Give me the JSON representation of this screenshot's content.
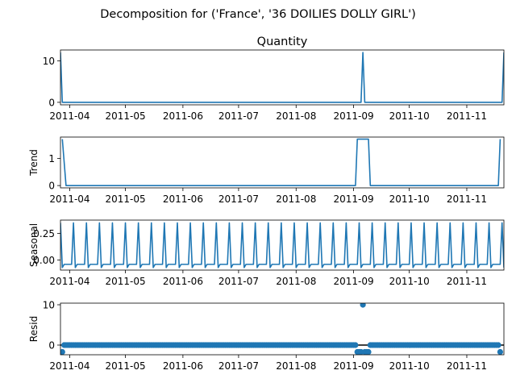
{
  "suptitle": "Decomposition for ('France', '36 DOILIES DOLLY GIRL')",
  "colors": {
    "line": "#1f77b4",
    "marker": "#1f77b4",
    "axis": "#000000",
    "background": "#ffffff"
  },
  "chart_data": [
    {
      "type": "line",
      "key": "observed",
      "title": "Quantity",
      "ylabel": "",
      "ylim": [
        -0.6,
        12.6
      ],
      "yticks": [
        {
          "v": 0,
          "label": "0"
        },
        {
          "v": 10,
          "label": "10"
        }
      ],
      "x_start": "2011-03-27",
      "x_end": "2011-11-21",
      "xticks": [
        {
          "v": "2011-04-01",
          "label": "2011-04"
        },
        {
          "v": "2011-05-01",
          "label": "2011-05"
        },
        {
          "v": "2011-06-01",
          "label": "2011-06"
        },
        {
          "v": "2011-07-01",
          "label": "2011-07"
        },
        {
          "v": "2011-08-01",
          "label": "2011-08"
        },
        {
          "v": "2011-09-01",
          "label": "2011-09"
        },
        {
          "v": "2011-10-01",
          "label": "2011-10"
        },
        {
          "v": "2011-11-01",
          "label": "2011-11"
        }
      ],
      "series": [
        {
          "name": "Quantity",
          "points": [
            [
              "2011-03-27",
              12
            ],
            [
              "2011-03-28",
              0
            ],
            [
              "2011-09-05",
              0
            ],
            [
              "2011-09-06",
              12
            ],
            [
              "2011-09-07",
              0
            ],
            [
              "2011-11-20",
              0
            ],
            [
              "2011-11-21",
              12
            ]
          ]
        }
      ]
    },
    {
      "type": "line",
      "key": "trend",
      "title": "",
      "ylabel": "Trend",
      "ylim": [
        -0.085,
        1.785
      ],
      "yticks": [
        {
          "v": 0,
          "label": "0"
        },
        {
          "v": 1,
          "label": "1"
        }
      ],
      "x_start": "2011-03-27",
      "x_end": "2011-11-21",
      "xticks": [
        {
          "v": "2011-04-01",
          "label": "2011-04"
        },
        {
          "v": "2011-05-01",
          "label": "2011-05"
        },
        {
          "v": "2011-06-01",
          "label": "2011-06"
        },
        {
          "v": "2011-07-01",
          "label": "2011-07"
        },
        {
          "v": "2011-08-01",
          "label": "2011-08"
        },
        {
          "v": "2011-09-01",
          "label": "2011-09"
        },
        {
          "v": "2011-10-01",
          "label": "2011-10"
        },
        {
          "v": "2011-11-01",
          "label": "2011-11"
        }
      ],
      "series": [
        {
          "name": "Trend",
          "points": [
            [
              "2011-03-28",
              1.71
            ],
            [
              "2011-03-30",
              0
            ],
            [
              "2011-09-02",
              0
            ],
            [
              "2011-09-03",
              1.71
            ],
            [
              "2011-09-09",
              1.71
            ],
            [
              "2011-09-10",
              0
            ],
            [
              "2011-11-18",
              0
            ],
            [
              "2011-11-19",
              1.71
            ]
          ]
        }
      ]
    },
    {
      "type": "line",
      "key": "seasonal",
      "title": "",
      "ylabel": "Seasonal",
      "ylim": [
        -0.094,
        0.376
      ],
      "yticks": [
        {
          "v": 0,
          "label": "0.00"
        },
        {
          "v": 0.25,
          "label": "0.25"
        }
      ],
      "x_start": "2011-03-27",
      "x_end": "2011-11-21",
      "xticks": [
        {
          "v": "2011-04-01",
          "label": "2011-04"
        },
        {
          "v": "2011-05-01",
          "label": "2011-05"
        },
        {
          "v": "2011-06-01",
          "label": "2011-06"
        },
        {
          "v": "2011-07-01",
          "label": "2011-07"
        },
        {
          "v": "2011-08-01",
          "label": "2011-08"
        },
        {
          "v": "2011-09-01",
          "label": "2011-09"
        },
        {
          "v": "2011-10-01",
          "label": "2011-10"
        },
        {
          "v": "2011-11-01",
          "label": "2011-11"
        }
      ],
      "seasonal_pattern": {
        "period_days": 7,
        "peak_date": "2011-03-27",
        "values": [
          0.35,
          -0.07,
          -0.04,
          -0.04,
          -0.04,
          -0.04,
          -0.04
        ]
      },
      "series": [
        {
          "name": "Seasonal",
          "points": []
        }
      ]
    },
    {
      "type": "scatter",
      "key": "resid",
      "title": "",
      "ylabel": "Resid",
      "ylim": [
        -2.4,
        10.4
      ],
      "yticks": [
        {
          "v": 0,
          "label": "0"
        },
        {
          "v": 10,
          "label": "10"
        }
      ],
      "x_start": "2011-03-27",
      "x_end": "2011-11-21",
      "xticks": [
        {
          "v": "2011-04-01",
          "label": "2011-04"
        },
        {
          "v": "2011-05-01",
          "label": "2011-05"
        },
        {
          "v": "2011-06-01",
          "label": "2011-06"
        },
        {
          "v": "2011-07-01",
          "label": "2011-07"
        },
        {
          "v": "2011-08-01",
          "label": "2011-08"
        },
        {
          "v": "2011-09-01",
          "label": "2011-09"
        },
        {
          "v": "2011-10-01",
          "label": "2011-10"
        },
        {
          "v": "2011-11-01",
          "label": "2011-11"
        }
      ],
      "baseline": 0,
      "series": [
        {
          "name": "Resid",
          "range_start": "2011-03-28",
          "range_end": "2011-11-19",
          "default_value": 0,
          "overrides": [
            [
              "2011-03-28",
              -1.7
            ],
            [
              "2011-09-03",
              -1.7
            ],
            [
              "2011-09-04",
              -1.7
            ],
            [
              "2011-09-05",
              -1.7
            ],
            [
              "2011-09-06",
              10
            ],
            [
              "2011-09-07",
              -1.7
            ],
            [
              "2011-09-08",
              -1.7
            ],
            [
              "2011-09-09",
              -1.7
            ],
            [
              "2011-11-19",
              -1.7
            ]
          ]
        }
      ]
    }
  ]
}
